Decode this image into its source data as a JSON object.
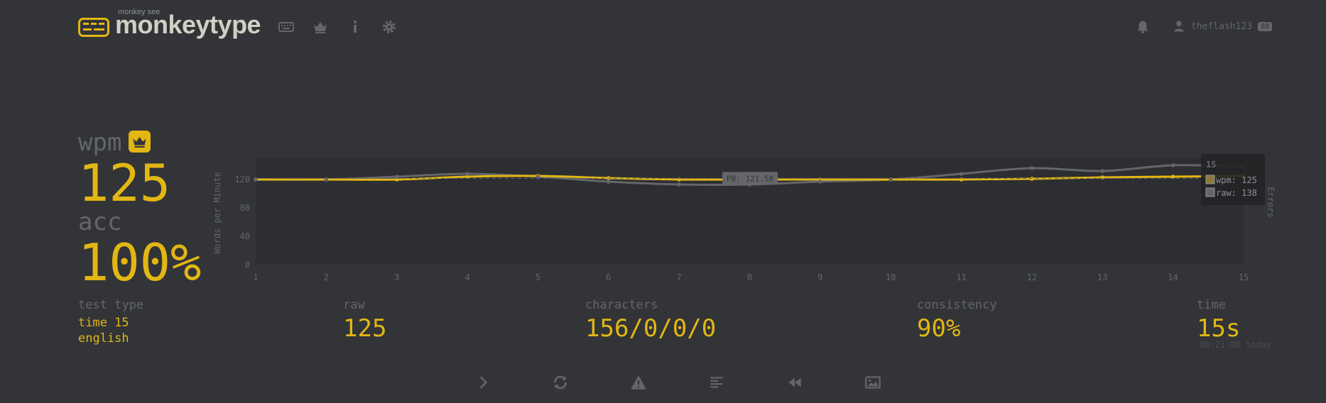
{
  "header": {
    "logo_top": "monkey see",
    "logo_text": "monkeytype",
    "nav_icons": [
      "keyboard-icon",
      "crown-icon",
      "info-icon",
      "gear-icon"
    ],
    "username": "theflash123",
    "level": "88"
  },
  "stats": {
    "wpm_label": "wpm",
    "wpm_value": "125",
    "acc_label": "acc",
    "acc_value": "100%",
    "test_type_label": "test type",
    "test_type_line1": "time 15",
    "test_type_line2": "english",
    "raw_label": "raw",
    "raw_value": "125",
    "characters_label": "characters",
    "characters_value": "156/0/0/0",
    "consistency_label": "consistency",
    "consistency_value": "90%",
    "time_label": "time",
    "time_value": "15s",
    "timestamp": "00:21:00 today"
  },
  "chart_data": {
    "type": "line",
    "x": [
      1,
      2,
      3,
      4,
      5,
      6,
      7,
      8,
      9,
      10,
      11,
      12,
      13,
      14,
      15
    ],
    "series": [
      {
        "name": "wpm",
        "values": [
          120,
          120,
          120,
          124,
          125,
          122,
          120,
          120,
          120,
          120,
          120,
          121,
          123,
          124,
          125
        ],
        "color": "#e2b714"
      },
      {
        "name": "raw",
        "values": [
          120,
          120,
          124,
          128,
          124,
          117,
          113,
          113,
          117,
          120,
          128,
          136,
          132,
          140,
          138
        ],
        "color": "#646669"
      }
    ],
    "ylabel": "Words per Minute",
    "y2label": "Errors",
    "yticks": [
      0,
      40,
      80,
      120
    ],
    "ylim": [
      0,
      150
    ],
    "pb_annotation": "PB: 121.58",
    "pb_value": 121.58,
    "tooltip": {
      "title": "15",
      "wpm": "wpm: 125",
      "raw": "raw: 138"
    }
  },
  "buttons": [
    "next-test-button",
    "restart-button",
    "report-button",
    "words-history-button",
    "replay-button",
    "screenshot-button"
  ]
}
